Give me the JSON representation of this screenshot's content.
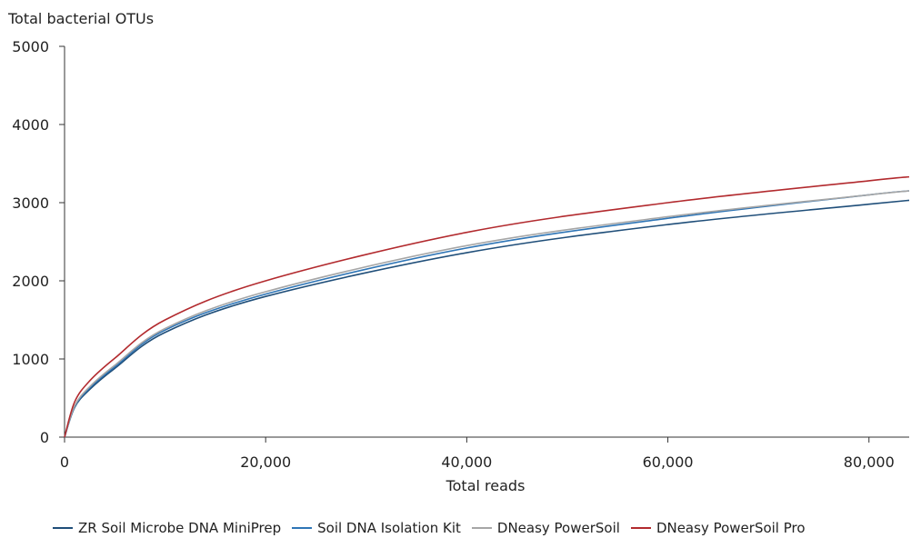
{
  "chart_data": {
    "type": "line",
    "ylabel": "Total bacterial OTUs",
    "xlabel": "Total reads",
    "xlim": [
      0,
      84000
    ],
    "ylim": [
      0,
      5000
    ],
    "x_ticks": [
      0,
      20000,
      40000,
      60000,
      80000
    ],
    "x_tick_labels": [
      "0",
      "20,000",
      "40,000",
      "60,000",
      "80,000"
    ],
    "y_ticks": [
      0,
      1000,
      2000,
      3000,
      4000,
      5000
    ],
    "y_tick_labels": [
      "0",
      "1000",
      "2000",
      "3000",
      "4000",
      "5000"
    ],
    "grid": false,
    "legend_position": "bottom",
    "x": [
      0,
      1000,
      2500,
      5000,
      10000,
      20000,
      40000,
      60000,
      80000,
      84000
    ],
    "series": [
      {
        "name": "ZR Soil Microbe DNA MiniPrep",
        "color": "#1f4e79",
        "values": [
          0,
          380,
          610,
          880,
          1340,
          1800,
          2360,
          2720,
          2980,
          3030
        ]
      },
      {
        "name": "Soil DNA Isolation Kit",
        "color": "#2e75b6",
        "values": [
          0,
          390,
          630,
          900,
          1370,
          1830,
          2420,
          2800,
          3100,
          3150
        ]
      },
      {
        "name": "DNeasy PowerSoil",
        "color": "#a6a6a6",
        "values": [
          0,
          400,
          645,
          920,
          1390,
          1860,
          2450,
          2820,
          3100,
          3150
        ]
      },
      {
        "name": "DNeasy PowerSoil Pro",
        "color": "#b22a2e",
        "values": [
          0,
          450,
          720,
          1010,
          1500,
          2000,
          2620,
          3000,
          3280,
          3330
        ]
      }
    ]
  }
}
